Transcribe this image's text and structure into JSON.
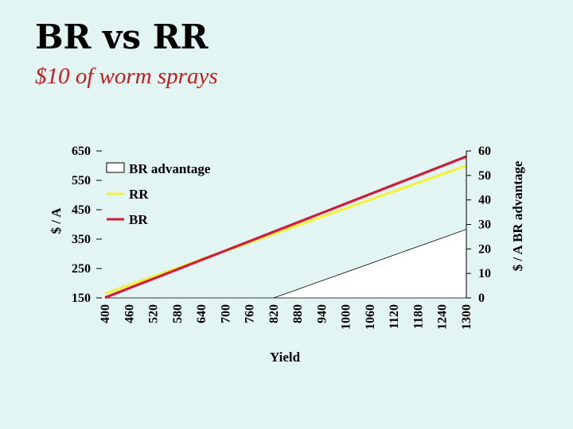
{
  "slide": {
    "title": "BR vs RR",
    "subtitle": "$10 of worm sprays"
  },
  "colors": {
    "background": "#e2f5f2",
    "br": "#d01c3a",
    "rr": "#f2f23a",
    "advantage_fill": "#ffffff",
    "subtitle": "#c81c1c"
  },
  "chart_data": {
    "type": "line",
    "xlabel": "Yield",
    "ylabel": "$ / A",
    "y2label": "$ / A BR advantage",
    "x": [
      400,
      460,
      520,
      580,
      640,
      700,
      760,
      820,
      880,
      940,
      1000,
      1060,
      1120,
      1180,
      1240,
      1300
    ],
    "ylim": [
      150,
      650
    ],
    "y_ticks": [
      150,
      250,
      350,
      450,
      550,
      650
    ],
    "y2lim": [
      0,
      60
    ],
    "y2_ticks": [
      0,
      10,
      20,
      30,
      40,
      50,
      60
    ],
    "series": [
      {
        "name": "BR advantage",
        "type": "area",
        "axis": "secondary",
        "values": [
          0,
          0,
          0,
          0,
          0,
          0,
          0,
          0,
          3.5,
          7,
          10.5,
          14,
          17.5,
          21,
          24.5,
          28
        ]
      },
      {
        "name": "RR",
        "type": "line",
        "axis": "primary",
        "values": [
          165,
          194,
          223,
          252,
          281,
          310,
          339,
          368,
          397,
          426,
          455,
          484,
          513,
          542,
          571,
          600
        ]
      },
      {
        "name": "BR",
        "type": "line",
        "axis": "primary",
        "values": [
          151,
          183,
          215,
          247,
          279,
          311,
          343,
          375,
          407,
          439,
          471,
          503,
          535,
          567,
          599,
          631
        ]
      }
    ],
    "legend": {
      "placement": "top-left",
      "order": [
        "BR advantage",
        "RR",
        "BR"
      ]
    },
    "grid": false
  }
}
